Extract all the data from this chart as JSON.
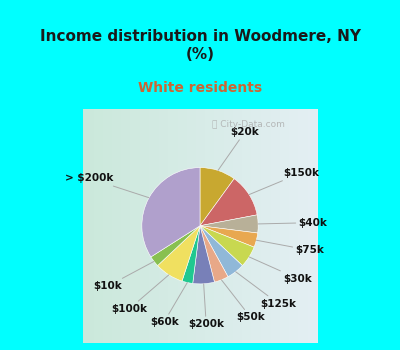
{
  "title": "Income distribution in Woodmere, NY\n(%)",
  "subtitle": "White residents",
  "title_color": "#1a1a1a",
  "subtitle_color": "#cc6633",
  "bg_cyan": "#00ffff",
  "bg_chart_left": "#c8e8d8",
  "bg_chart_right": "#e8f0f8",
  "watermark": "ⓘ City-Data.com",
  "wedge_labels": [
    "$20k",
    "$150k",
    "$40k",
    "$75k",
    "$30k",
    "$125k",
    "$50k",
    "$200k",
    "$60k",
    "$100k",
    "$10k",
    "> $200k"
  ],
  "wedge_values": [
    10,
    12,
    5,
    4,
    6,
    5,
    4,
    6,
    3,
    8,
    3,
    34
  ],
  "wedge_colors": [
    "#c8a830",
    "#cc6666",
    "#b8b098",
    "#e8a850",
    "#c8d850",
    "#90b8d8",
    "#e8a888",
    "#7880b8",
    "#20c890",
    "#f0e060",
    "#88c050",
    "#b0a0cc"
  ],
  "figsize": [
    4.0,
    3.5
  ],
  "dpi": 100,
  "title_fontsize": 11,
  "subtitle_fontsize": 10,
  "label_fontsize": 7.5
}
